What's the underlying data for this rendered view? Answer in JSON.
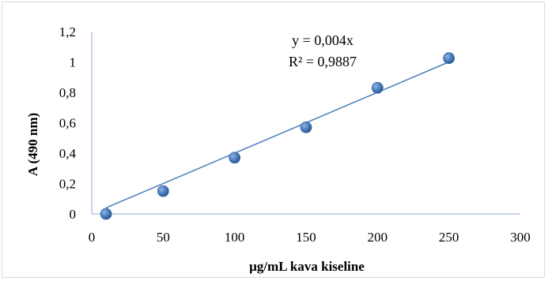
{
  "chart_data": {
    "type": "scatter",
    "xlabel": "µg/mL kava kiseline",
    "ylabel": "A (490 nm)",
    "xlim": [
      0,
      300
    ],
    "ylim": [
      0,
      1.2
    ],
    "x_ticks": [
      "0",
      "50",
      "100",
      "150",
      "200",
      "250",
      "300"
    ],
    "y_ticks": [
      "0",
      "0,2",
      "0,4",
      "0,6",
      "0,8",
      "1",
      "1,2"
    ],
    "grid": false,
    "x": [
      10,
      50,
      100,
      150,
      200,
      250
    ],
    "y": [
      0.0,
      0.15,
      0.37,
      0.57,
      0.83,
      1.025
    ],
    "trendline": {
      "type": "linear",
      "x": [
        10,
        250
      ],
      "y": [
        0.04,
        1.0
      ]
    },
    "annotations": {
      "equation": "y = 0,004x",
      "r_squared": "R² = 0,9887"
    },
    "colors": {
      "marker": "#4a7ebb",
      "trendline": "#4a7ebb",
      "axis": "#8ea8d3"
    }
  }
}
